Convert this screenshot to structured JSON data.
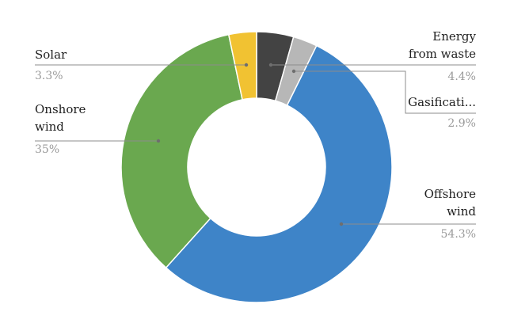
{
  "chart_data": {
    "type": "pie",
    "donut": true,
    "legend": "none",
    "slices": [
      {
        "label": "Offshore wind",
        "label_lines": [
          "Offshore",
          "wind"
        ],
        "value": 54.3,
        "value_label": "54.3%",
        "color": "#3e84c8"
      },
      {
        "label": "Onshore wind",
        "label_lines": [
          "Onshore",
          "wind"
        ],
        "value": 35,
        "value_label": "35%",
        "color": "#6aa84f"
      },
      {
        "label": "Solar",
        "label_lines": [
          "Solar"
        ],
        "value": 3.3,
        "value_label": "3.3%",
        "color": "#f1c232"
      },
      {
        "label": "Energy from waste",
        "label_lines": [
          "Energy",
          "from waste"
        ],
        "value": 4.4,
        "value_label": "4.4%",
        "color": "#434343"
      },
      {
        "label": "Gasificati...",
        "label_lines": [
          "Gasificati..."
        ],
        "value": 2.9,
        "value_label": "2.9%",
        "color": "#b7b7b7"
      }
    ]
  }
}
